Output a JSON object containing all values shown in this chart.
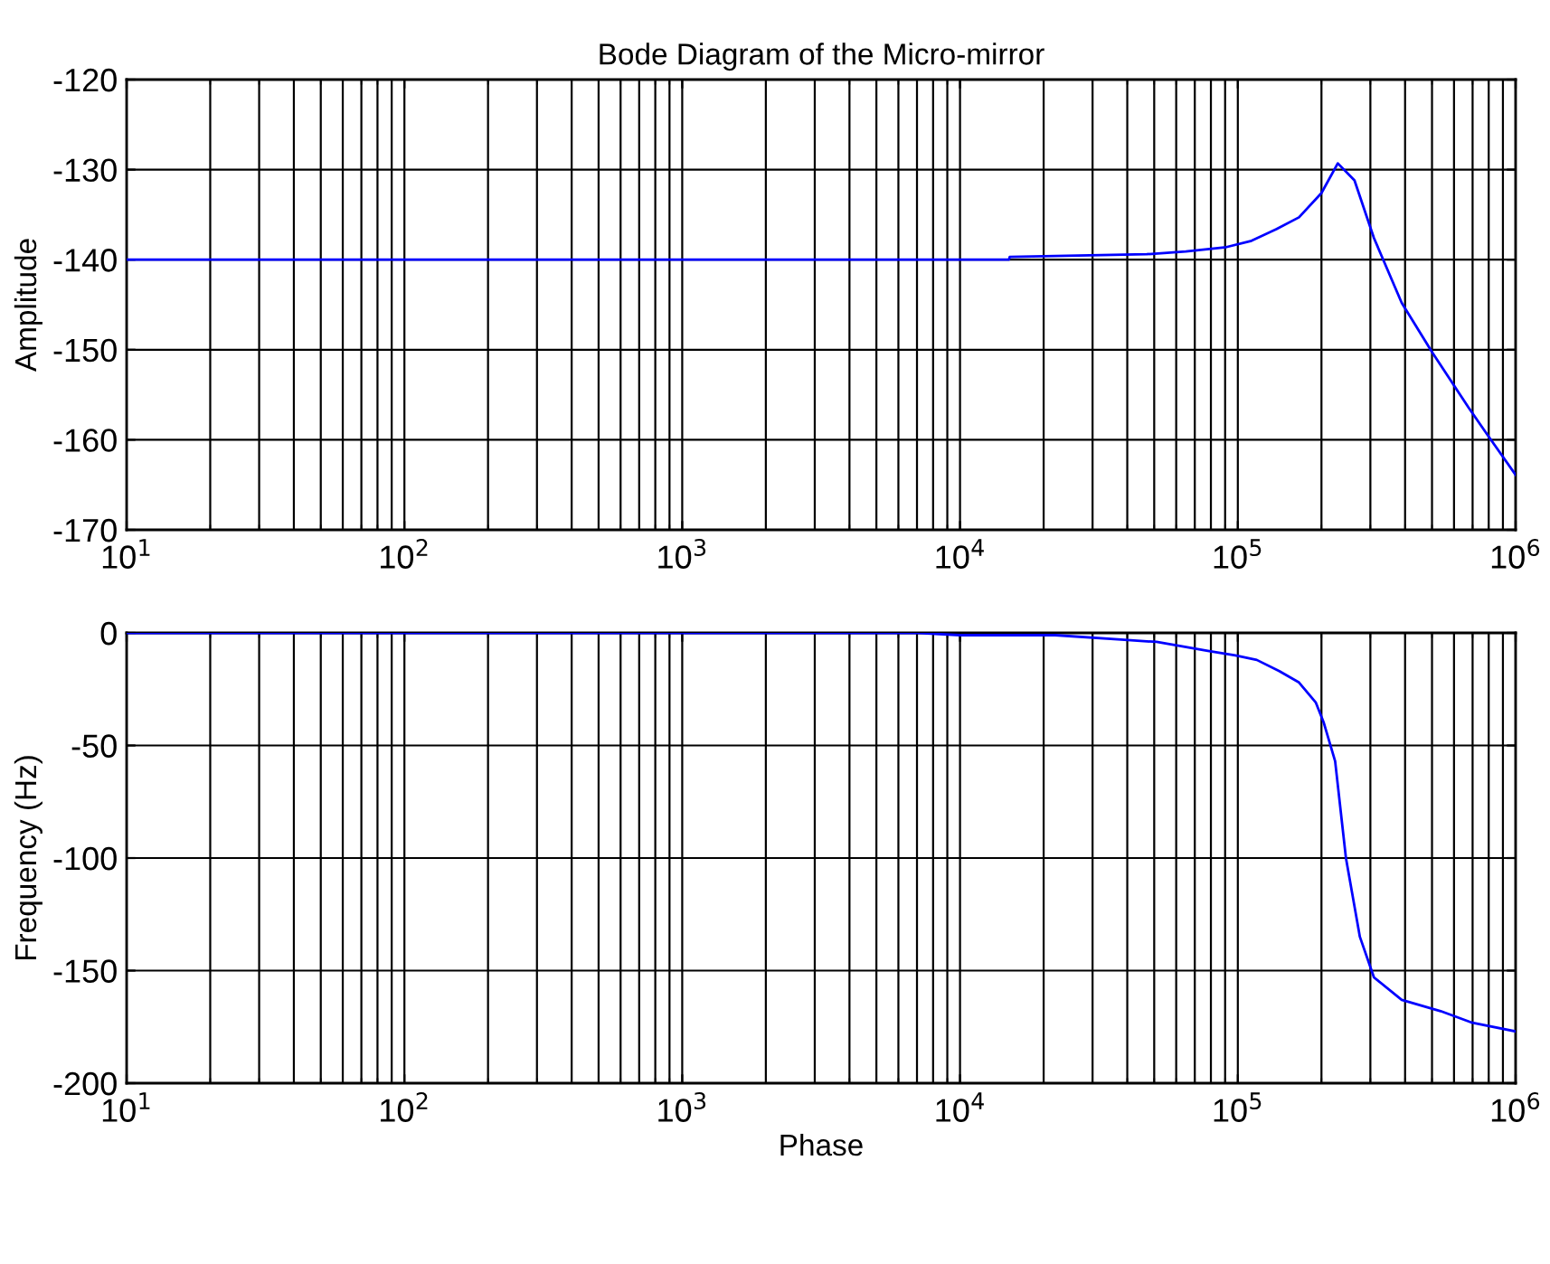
{
  "chart_data": [
    {
      "type": "line",
      "title": "Bode Diagram of the Micro-mirror",
      "ylabel": "Amplitude",
      "log": "x",
      "grid": true,
      "marker": "none",
      "line_style": "solid",
      "xlim": [
        10,
        1000000
      ],
      "xticks": [
        {
          "value": 10,
          "label": "10$^{1}$"
        },
        {
          "value": 100,
          "label": "10$^{2}$"
        },
        {
          "value": 1000,
          "label": "10$^{3}$"
        },
        {
          "value": 10000,
          "label": "10$^{4}$"
        },
        {
          "value": 100000,
          "label": "10$^{5}$"
        },
        {
          "value": 1000000,
          "label": "10$^{6}$"
        }
      ],
      "ylim": [
        -170,
        -120
      ],
      "yticks": [
        -170,
        -160,
        -150,
        -140,
        -130,
        -120
      ],
      "series": [
        {
          "color": "#0000ff",
          "x": [
            10,
            15000,
            15100,
            47000,
            65000,
            91000,
            112000,
            138000,
            166000,
            200000,
            229000,
            263000,
            309000,
            389000,
            501000,
            676000,
            794000,
            1000000
          ],
          "values": [
            -140,
            -140,
            -139.7,
            -139.4,
            -139.1,
            -138.6,
            -137.9,
            -136.6,
            -135.3,
            -132.6,
            -129.3,
            -131.2,
            -137.6,
            -144.8,
            -150.3,
            -156.4,
            -159.5,
            -163.9
          ]
        }
      ]
    },
    {
      "type": "line",
      "xlabel": "Phase",
      "ylabel": "Frequency (Hz)",
      "log": "x",
      "grid": true,
      "marker": "none",
      "line_style": "solid",
      "xlim": [
        10,
        1000000
      ],
      "xticks": [
        {
          "value": 10,
          "label": "10$^{1}$"
        },
        {
          "value": 100,
          "label": "10$^{2}$"
        },
        {
          "value": 1000,
          "label": "10$^{3}$"
        },
        {
          "value": 10000,
          "label": "10$^{4}$"
        },
        {
          "value": 100000,
          "label": "10$^{5}$"
        },
        {
          "value": 1000000,
          "label": "10$^{6}$"
        }
      ],
      "ylim": [
        -200,
        0
      ],
      "yticks": [
        -200,
        -150,
        -100,
        -50,
        0
      ],
      "series": [
        {
          "color": "#0000ff",
          "x": [
            10,
            7000,
            10000,
            22000,
            38000,
            51000,
            78000,
            98000,
            117000,
            141000,
            166000,
            191000,
            204000,
            224000,
            245000,
            275000,
            309000,
            389000,
            537000,
            692000,
            1000000
          ],
          "values": [
            0,
            0,
            -1,
            -1,
            -3,
            -4,
            -8,
            -10,
            -12,
            -17,
            -22,
            -31,
            -40,
            -57,
            -100,
            -135,
            -153,
            -163,
            -168,
            -173,
            -177
          ]
        }
      ]
    }
  ]
}
